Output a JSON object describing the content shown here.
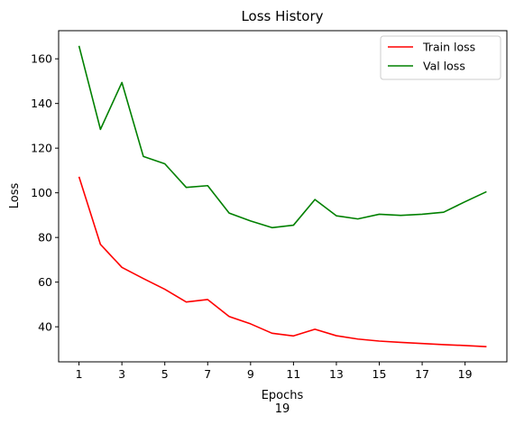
{
  "chart_data": {
    "type": "line",
    "title": "Loss History",
    "xlabel": "Epochs",
    "xlabel_sub": "19",
    "ylabel": "Loss",
    "x": [
      1,
      2,
      3,
      4,
      5,
      6,
      7,
      8,
      9,
      10,
      11,
      12,
      13,
      14,
      15,
      16,
      17,
      18,
      19,
      20
    ],
    "xticks": [
      1,
      3,
      5,
      7,
      9,
      11,
      13,
      15,
      17,
      19
    ],
    "yticks": [
      40,
      60,
      80,
      100,
      120,
      140,
      160
    ],
    "xlim": [
      0.05,
      20.95
    ],
    "ylim": [
      24.3,
      172.6
    ],
    "grid": false,
    "legend_position": "top-right",
    "series": [
      {
        "name": "Train loss",
        "color": "#ff0000",
        "values": [
          107.2,
          76.9,
          66.6,
          61.6,
          56.8,
          51.1,
          52.2,
          44.6,
          41.3,
          37.1,
          35.9,
          38.9,
          36.0,
          34.5,
          33.6,
          33.0,
          32.5,
          32.0,
          31.6,
          31.1
        ]
      },
      {
        "name": "Val loss",
        "color": "#008000",
        "values": [
          165.8,
          128.4,
          149.4,
          116.3,
          113.0,
          102.4,
          103.2,
          90.9,
          87.4,
          84.4,
          85.5,
          97.0,
          89.7,
          88.3,
          90.4,
          89.9,
          90.4,
          91.3,
          96.0,
          100.5
        ]
      }
    ]
  }
}
